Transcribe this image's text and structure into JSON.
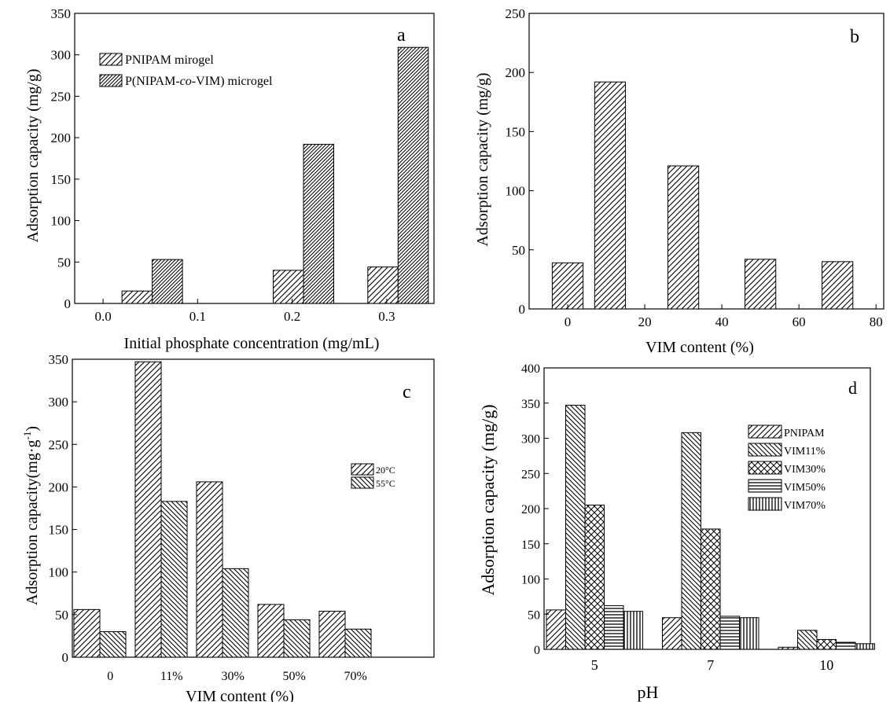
{
  "chart_data": [
    {
      "panel": "a",
      "type": "bar",
      "xlabel": "Initial phosphate concentration (mg/mL)",
      "ylabel": "Adsorption capacity (mg/g)",
      "xlim": [
        -0.03,
        0.35
      ],
      "ylim": [
        0,
        350
      ],
      "xticks": [
        "0.0",
        "0.1",
        "0.2",
        "0.3"
      ],
      "xtick_values": [
        0.0,
        0.1,
        0.2,
        0.3
      ],
      "yticks": [
        0,
        50,
        100,
        150,
        200,
        250,
        300,
        350
      ],
      "bar_width": 0.032,
      "grid": false,
      "legend_position": "top-left",
      "series": [
        {
          "name": "PNIPAM mirogel",
          "pattern": "diag-fwd",
          "x": [
            0.036,
            0.196,
            0.296
          ],
          "values": [
            15,
            40,
            44
          ]
        },
        {
          "name_parts": [
            "P(NIPAM-",
            "co",
            "-VIM) microgel"
          ],
          "pattern": "diag-fwd-dense",
          "x": [
            0.068,
            0.228,
            0.328
          ],
          "values": [
            53,
            192,
            309
          ]
        }
      ]
    },
    {
      "panel": "b",
      "type": "bar",
      "xlabel": "VIM content (%)",
      "ylabel": "Adsorption capacity (mg/g)",
      "xlim": [
        -10,
        82
      ],
      "ylim": [
        0,
        250
      ],
      "xticks": [
        "0",
        "20",
        "40",
        "60",
        "80"
      ],
      "xtick_values": [
        0,
        20,
        40,
        60,
        80
      ],
      "yticks": [
        0,
        50,
        100,
        150,
        200,
        250
      ],
      "bar_width": 8,
      "grid": false,
      "series": [
        {
          "name": "",
          "pattern": "diag-fwd",
          "x": [
            0,
            11,
            30,
            50,
            70
          ],
          "values": [
            39,
            192,
            121,
            42,
            40
          ]
        }
      ]
    },
    {
      "panel": "c",
      "type": "bar",
      "xlabel": "VIM content (%)",
      "ylabel_parts": [
        "Adsorption capacity(mg·g",
        "-1",
        ")"
      ],
      "categories": [
        "0",
        "11%",
        "30%",
        "50%",
        "70%"
      ],
      "ylim": [
        0,
        350
      ],
      "yticks": [
        0,
        50,
        100,
        150,
        200,
        250,
        300,
        350
      ],
      "grid": false,
      "legend_position": "right",
      "series": [
        {
          "name": "20°C",
          "pattern": "diag-fwd",
          "values": [
            56,
            347,
            206,
            62,
            54
          ]
        },
        {
          "name": "55°C",
          "pattern": "diag-back",
          "values": [
            30,
            183,
            104,
            44,
            33
          ]
        }
      ]
    },
    {
      "panel": "d",
      "type": "bar",
      "xlabel": "pH",
      "ylabel": "Adsorption capacity (mg/g)",
      "categories": [
        "5",
        "7",
        "10"
      ],
      "ylim": [
        0,
        400
      ],
      "yticks": [
        0,
        50,
        100,
        150,
        200,
        250,
        300,
        350,
        400
      ],
      "grid": false,
      "legend_position": "right",
      "series": [
        {
          "name": "PNIPAM",
          "pattern": "diag-fwd",
          "values": [
            56,
            45,
            3
          ]
        },
        {
          "name": "VIM11%",
          "pattern": "diag-back",
          "values": [
            347,
            308,
            27
          ]
        },
        {
          "name": "VIM30%",
          "pattern": "crosshatch",
          "values": [
            205,
            171,
            14
          ]
        },
        {
          "name": "VIM50%",
          "pattern": "horizontal",
          "values": [
            62,
            47,
            10
          ]
        },
        {
          "name": "VIM70%",
          "pattern": "vertical",
          "values": [
            54,
            45,
            8
          ]
        }
      ]
    }
  ]
}
